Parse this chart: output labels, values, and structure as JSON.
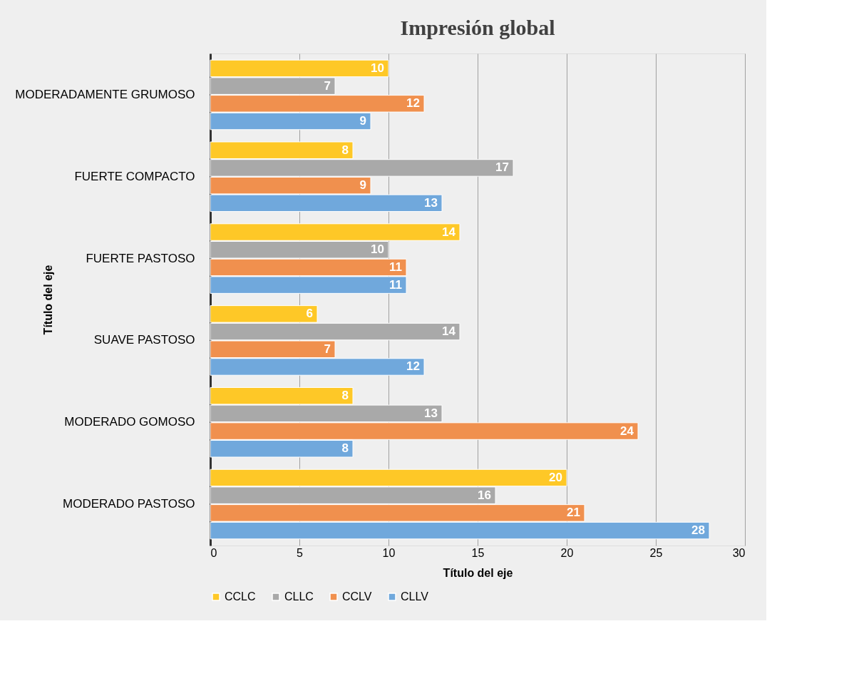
{
  "chart_data": {
    "type": "bar",
    "orientation": "horizontal",
    "title": "Impresión global",
    "xlabel": "Título del eje",
    "ylabel": "Título del eje",
    "categories": [
      "MODERADAMENTE GRUMOSO",
      "FUERTE COMPACTO",
      "FUERTE PASTOSO",
      "SUAVE PASTOSO",
      "MODERADO GOMOSO",
      "MODERADO PASTOSO"
    ],
    "series": [
      {
        "name": "CCLC",
        "color": "#fec827",
        "values": [
          10,
          8,
          14,
          6,
          8,
          20
        ]
      },
      {
        "name": "CLLC",
        "color": "#a9a9a9",
        "values": [
          7,
          17,
          10,
          14,
          13,
          16
        ]
      },
      {
        "name": "CCLV",
        "color": "#f0904e",
        "values": [
          12,
          9,
          11,
          7,
          24,
          21
        ]
      },
      {
        "name": "CLLV",
        "color": "#70a8dc",
        "values": [
          9,
          13,
          11,
          12,
          8,
          28
        ]
      }
    ],
    "xlim": [
      0,
      30
    ],
    "xticks": [
      0,
      5,
      10,
      15,
      20,
      25,
      30
    ],
    "grid": "x",
    "legend": "bottom",
    "data_labels": true
  }
}
